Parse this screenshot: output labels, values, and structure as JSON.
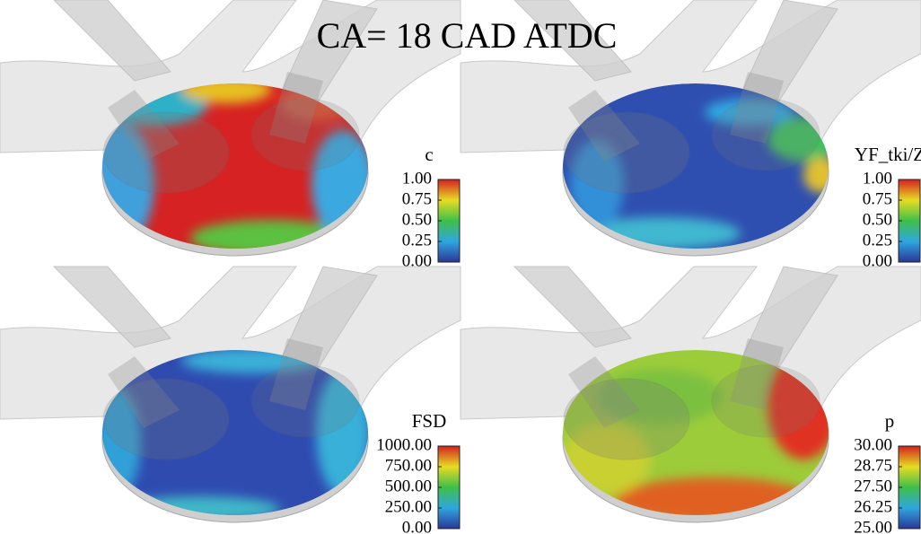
{
  "title": "CA= 18 CAD ATDC",
  "panels": [
    {
      "label": "c",
      "ticks": [
        {
          "value": 1,
          "label": "1.00"
        },
        {
          "value": 0.75,
          "label": "0.75"
        },
        {
          "value": 0.5,
          "label": "0.50"
        },
        {
          "value": 0.25,
          "label": "0.25"
        },
        {
          "value": 0,
          "label": "0.00"
        }
      ]
    },
    {
      "label": "YF_tki/Z",
      "ticks": [
        {
          "value": 1,
          "label": "1.00"
        },
        {
          "value": 0.75,
          "label": "0.75"
        },
        {
          "value": 0.5,
          "label": "0.50"
        },
        {
          "value": 0.25,
          "label": "0.25"
        },
        {
          "value": 0,
          "label": "0.00"
        }
      ]
    },
    {
      "label": "FSD",
      "ticks": [
        {
          "value": 1000,
          "label": "1000.00"
        },
        {
          "value": 750,
          "label": "750.00"
        },
        {
          "value": 500,
          "label": "500.00"
        },
        {
          "value": 250,
          "label": "250.00"
        },
        {
          "value": 0,
          "label": "0.00"
        }
      ]
    },
    {
      "label": "p",
      "ticks": [
        {
          "value": 30,
          "label": "30.00"
        },
        {
          "value": 28.75,
          "label": "28.75"
        },
        {
          "value": 27.5,
          "label": "27.50"
        },
        {
          "value": 26.25,
          "label": "26.25"
        },
        {
          "value": 25,
          "label": "25.00"
        }
      ]
    }
  ]
}
